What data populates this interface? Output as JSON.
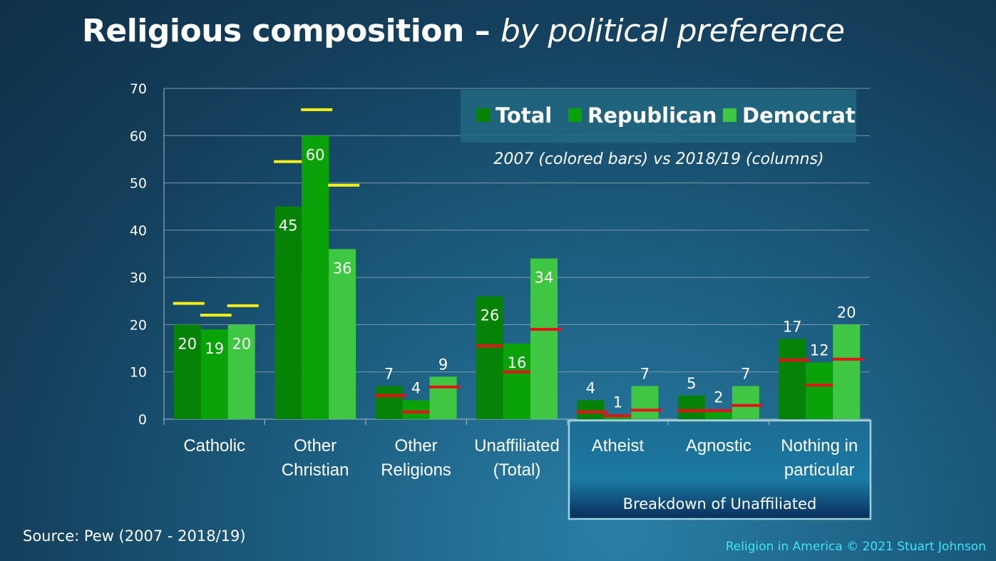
{
  "title": {
    "main": "Religious composition",
    "dash": " – ",
    "sub": "by political preference"
  },
  "source": "Source: Pew (2007 - 2018/19)",
  "copyright": "Religion in America © 2021 Stuart Johnson",
  "colors": {
    "total": "#068207",
    "republican": "#09a309",
    "democrat": "#3fc744",
    "marker_2007_christian": "#f2ef17",
    "marker_2007_unaffiliated": "#e8101a",
    "breakdown_box_border": "#9ed2df"
  },
  "chart_data": {
    "type": "bar",
    "subtitle": "2007 (colored bars) vs 2018/19 (columns)",
    "categories": [
      "Catholic",
      "Other Christian",
      "Other Religions",
      "Unaffiliated (Total)",
      "Atheist",
      "Agnostic",
      "Nothing in particular"
    ],
    "category_lines": [
      [
        "Catholic"
      ],
      [
        "Other",
        "Christian"
      ],
      [
        "Other",
        "Religions"
      ],
      [
        "Unaffiliated",
        "(Total)"
      ],
      [
        "Atheist"
      ],
      [
        "Agnostic"
      ],
      [
        "Nothing in",
        "particular"
      ]
    ],
    "series": [
      {
        "name": "Total",
        "values": [
          20,
          45,
          7,
          26,
          4,
          5,
          17
        ],
        "values_2007": [
          24.5,
          54.5,
          5,
          15.5,
          1.5,
          1.8,
          12.5
        ]
      },
      {
        "name": "Republican",
        "values": [
          19,
          60,
          4,
          16,
          1,
          2,
          12
        ],
        "values_2007": [
          22,
          65.5,
          1.5,
          10,
          0.7,
          1.8,
          7.2
        ]
      },
      {
        "name": "Democrat",
        "values": [
          20,
          36,
          9,
          34,
          7,
          7,
          20
        ],
        "values_2007": [
          24,
          49.5,
          6.8,
          19,
          1.9,
          2.9,
          12.7
        ]
      }
    ],
    "ylim": [
      0,
      70
    ],
    "yticks": [
      0,
      10,
      20,
      30,
      40,
      50,
      60,
      70
    ],
    "grid": true,
    "legend": "top-right",
    "breakdown_label": "Breakdown of Unaffiliated"
  }
}
